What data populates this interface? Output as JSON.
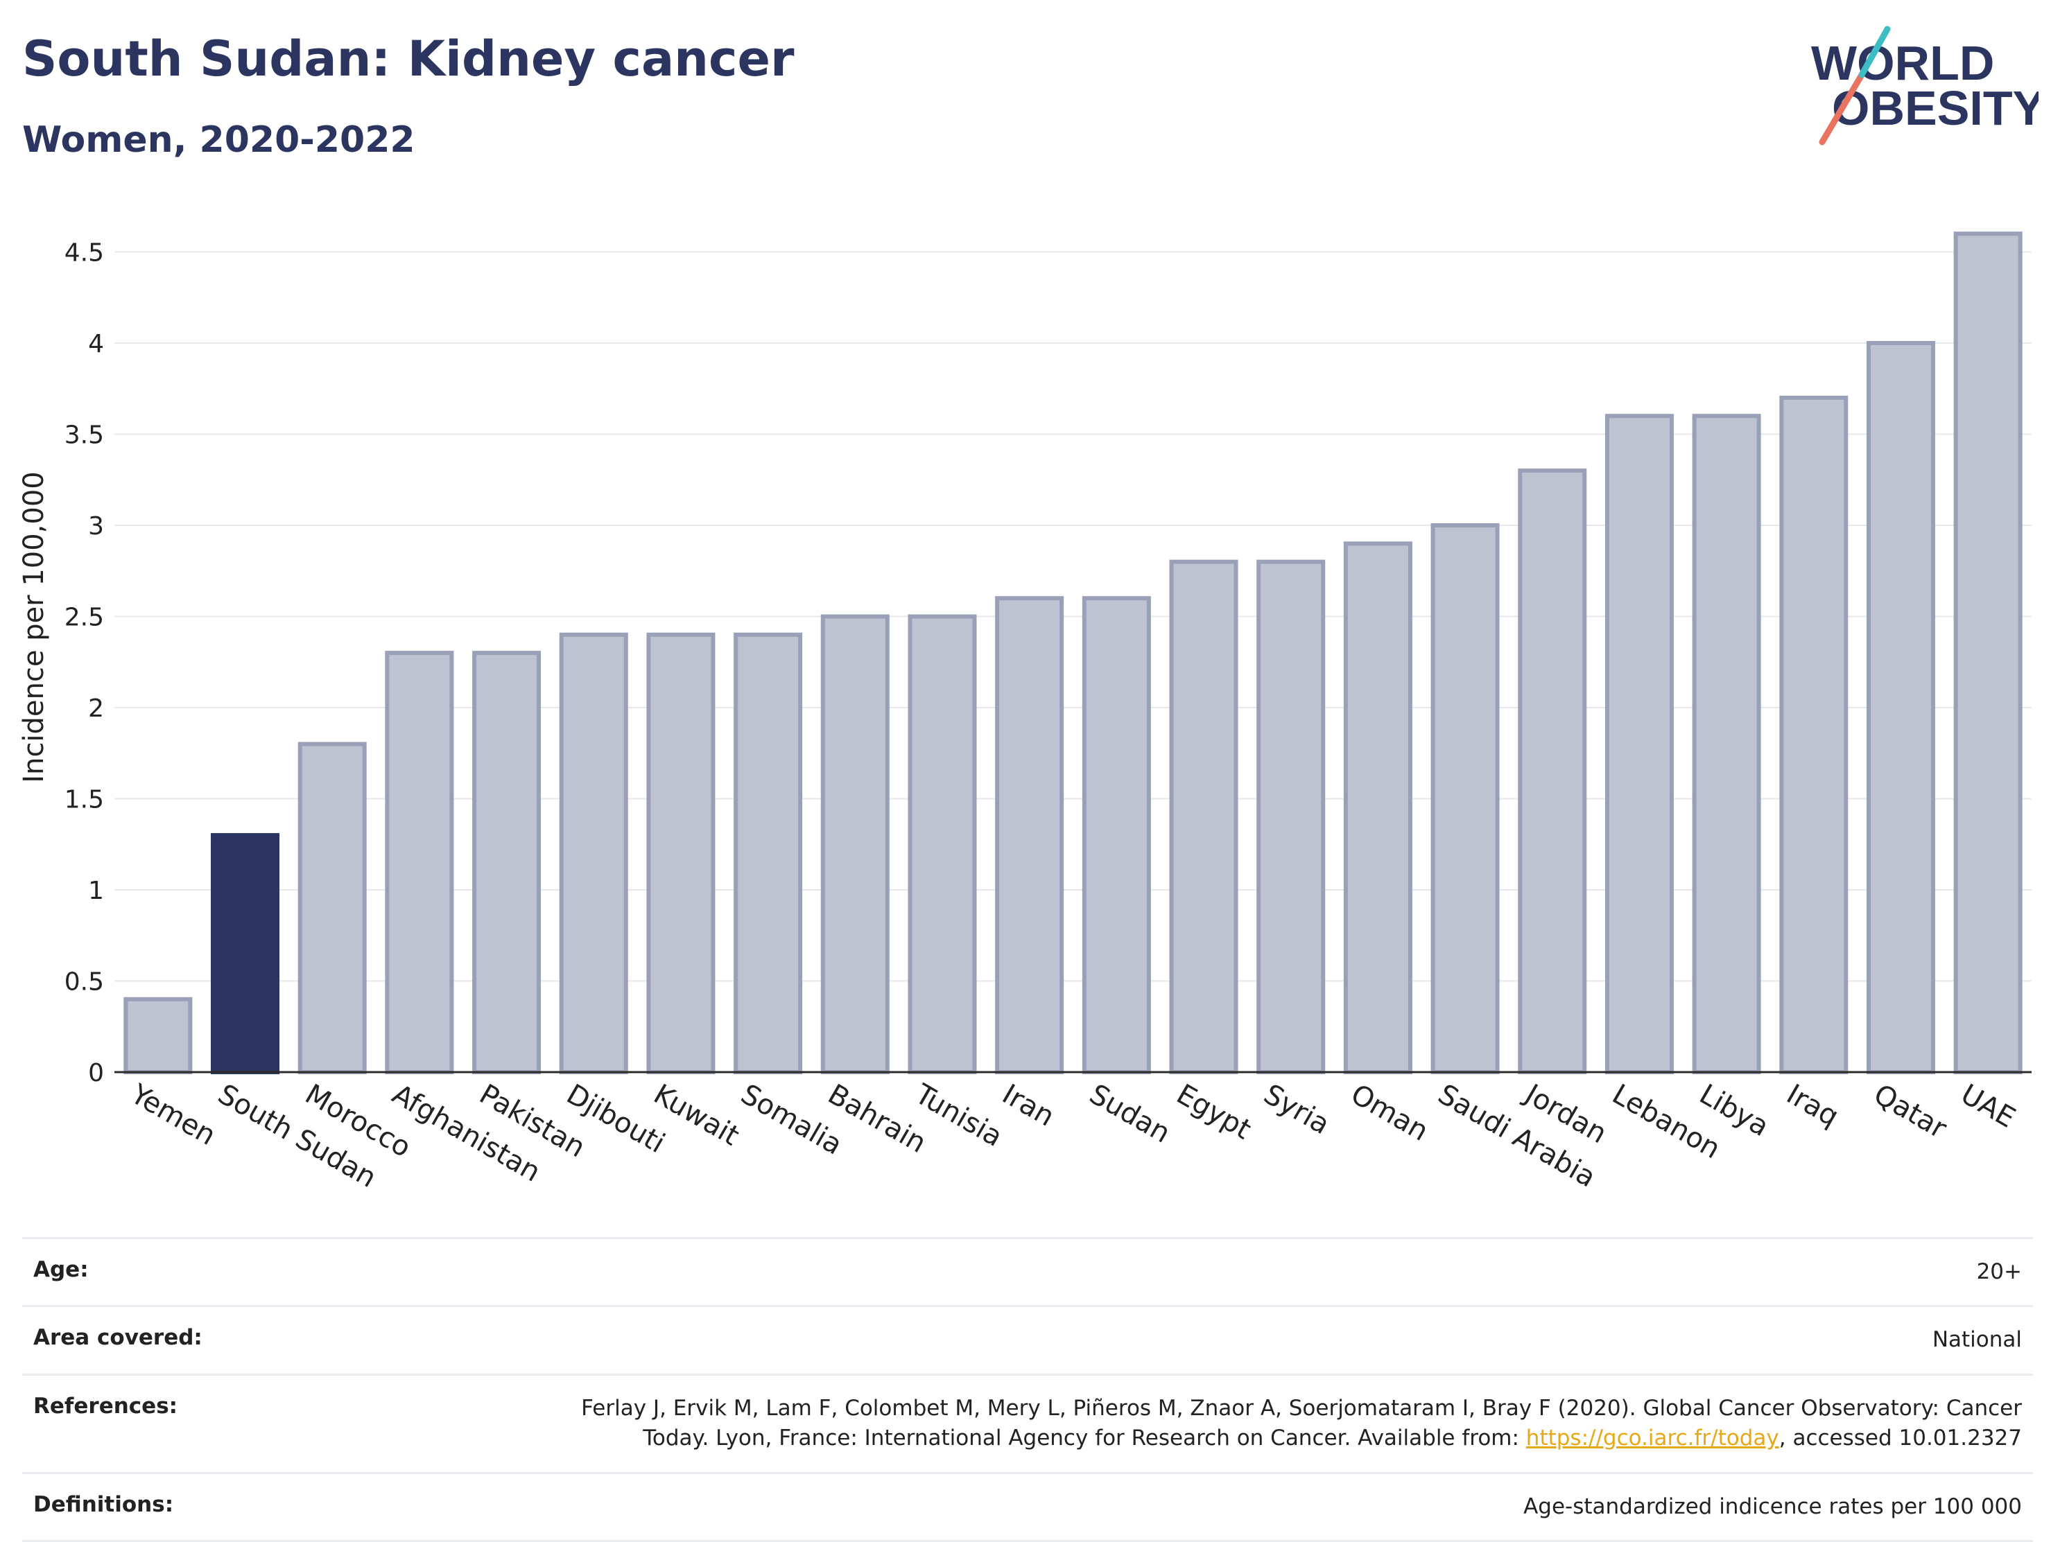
{
  "header": {
    "title": "South Sudan: Kidney cancer",
    "subtitle": "Women, 2020-2022",
    "logo_line1": "WORLD",
    "logo_line2": "OBESITY"
  },
  "colors": {
    "highlight": "#2b3560",
    "bar_fill": "#bfc3d1",
    "bar_stroke": "#9aa0b7",
    "grid": "#e6e8ee",
    "link": "#e6a817"
  },
  "chart_data": {
    "type": "bar",
    "categories": [
      "Yemen",
      "South Sudan",
      "Morocco",
      "Afghanistan",
      "Pakistan",
      "Djibouti",
      "Kuwait",
      "Somalia",
      "Bahrain",
      "Tunisia",
      "Iran",
      "Sudan",
      "Egypt",
      "Syria",
      "Oman",
      "Saudi Arabia",
      "Jordan",
      "Lebanon",
      "Libya",
      "Iraq",
      "Qatar",
      "UAE"
    ],
    "values": [
      0.4,
      1.3,
      1.8,
      2.3,
      2.3,
      2.4,
      2.4,
      2.4,
      2.5,
      2.5,
      2.6,
      2.6,
      2.8,
      2.8,
      2.9,
      3.0,
      3.3,
      3.6,
      3.6,
      3.7,
      4.0,
      4.6
    ],
    "highlight": "South Sudan",
    "ylabel": "Incidence per 100,000",
    "ylim": [
      0,
      4.8
    ],
    "yticks": [
      0,
      0.5,
      1,
      1.5,
      2,
      2.5,
      3,
      3.5,
      4,
      4.5
    ],
    "ytick_labels": [
      "0",
      "0.5",
      "1",
      "1.5",
      "2",
      "2.5",
      "3",
      "3.5",
      "4",
      "4.5"
    ],
    "grid": true
  },
  "info": {
    "age": {
      "label": "Age:",
      "value": "20+"
    },
    "area": {
      "label": "Area covered:",
      "value": "National"
    },
    "references": {
      "label": "References:",
      "text_line1": "Ferlay J, Ervik M, Lam F, Colombet M, Mery L, Piñeros M, Znaor A, Soerjomataram I, Bray F (2020). Global Cancer Observatory: Cancer",
      "text_before_link": "Today. Lyon, France: International Agency for Research on Cancer. Available from: ",
      "link": "https://gco.iarc.fr/today",
      "text_after_link": ", accessed 10.01.2327"
    },
    "definitions": {
      "label": "Definitions:",
      "value": "Age-standardized indicence rates per 100 000"
    }
  }
}
